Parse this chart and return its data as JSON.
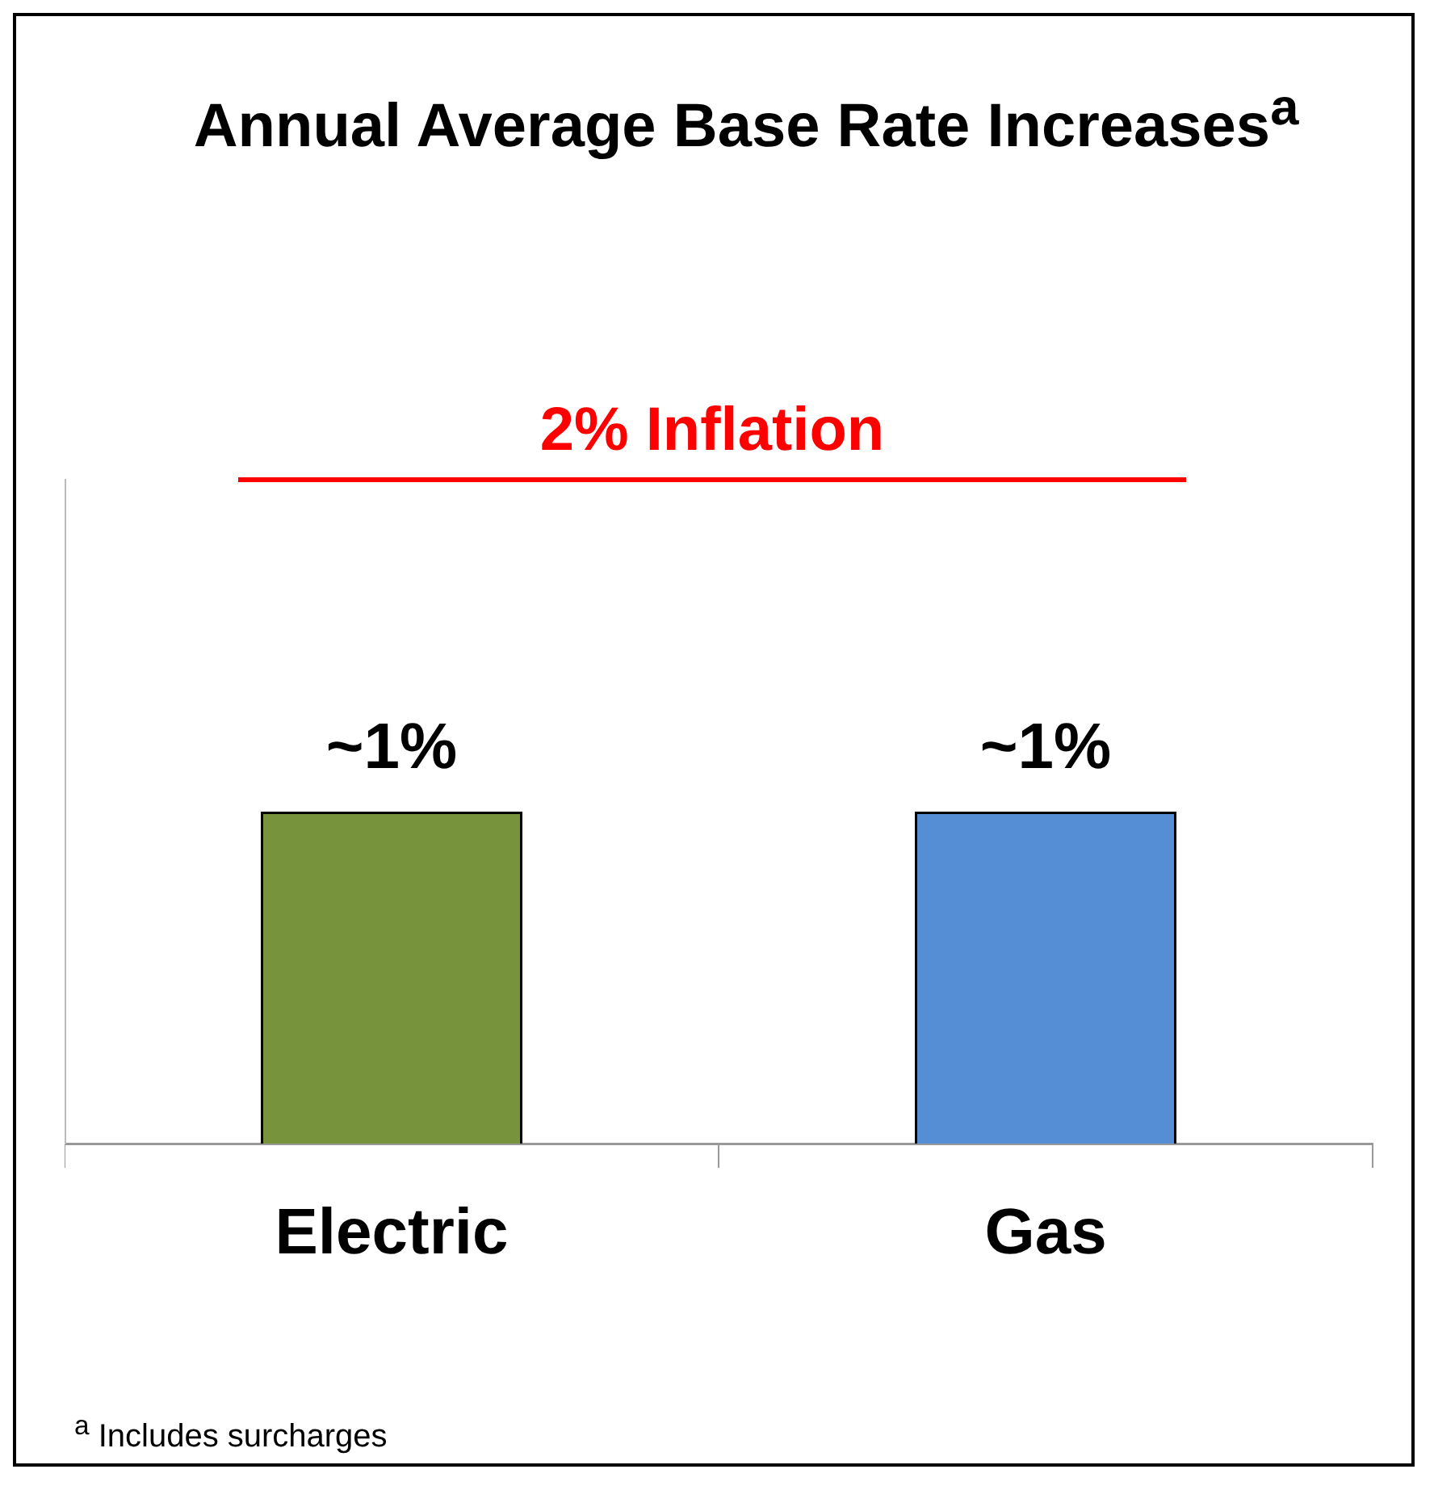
{
  "chart_data": {
    "type": "bar",
    "title": "Annual Average Base Rate Increases$^{a}$",
    "categories": [
      "Electric",
      "Gas"
    ],
    "values": [
      1,
      1
    ],
    "colors": [
      "#77933c",
      "#558ed5"
    ],
    "value_labels": [
      "~1%",
      "~1%"
    ],
    "tick_labels": "x",
    "grid": false,
    "legend": false,
    "ref_lines": [
      {
        "axis": "y",
        "value": 2,
        "label": "2% Inflation",
        "color": "#ff0000"
      }
    ],
    "annotations": [
      "$^{a}$ Includes surcharges"
    ]
  }
}
